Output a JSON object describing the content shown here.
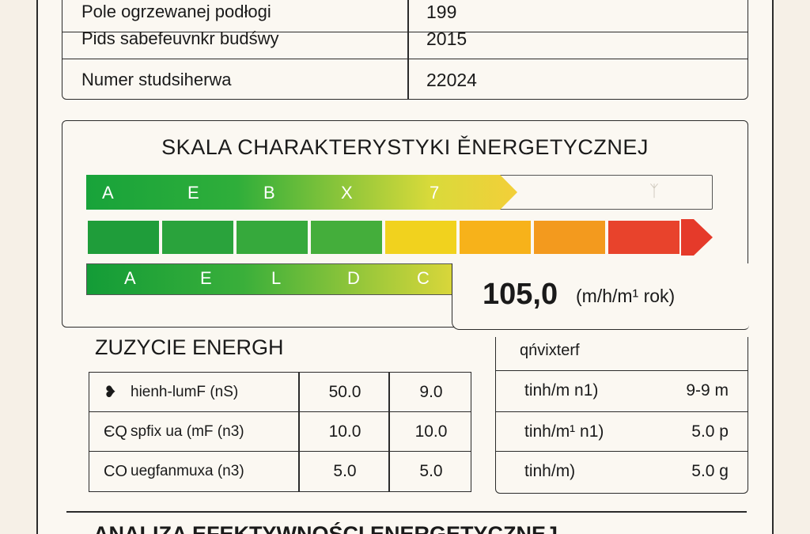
{
  "info_table": {
    "rows": [
      {
        "label": "Pole ogrzewanej podłogi",
        "value": "199"
      },
      {
        "label": "Pids sabefeuvnkr budśwy",
        "value": "2015"
      },
      {
        "label": "Numer studsiherwa",
        "value": "22024"
      }
    ]
  },
  "scale": {
    "title": "SKALA CHARAKTERYSTYKI ĚNERGETYCZNEJ",
    "bar1_letters": [
      "A",
      "E",
      "B",
      "X",
      "7"
    ],
    "bar1_ghost": "ᛉ",
    "bar2_colors": [
      "#1f9d3a",
      "#2aa33c",
      "#36a93c",
      "#44ae3b",
      "#f1d21e",
      "#f7b21a",
      "#f39a1e",
      "#e8432c",
      "#e53a2a"
    ],
    "bar3_letters": [
      "A",
      "E",
      "L",
      "D",
      "C"
    ],
    "value": "105,0",
    "unit": "(m/h/m¹ rok)"
  },
  "consumption": {
    "title": "ZUZYCIE ENERGH",
    "rows": [
      {
        "icon": "❥",
        "label": "hienh-lumF (nS)",
        "v1": "50.0",
        "v2": "9.0"
      },
      {
        "icon": "ЄQ",
        "label": "spfix ua (mF (n3)",
        "v1": "10.0",
        "v2": "10.0"
      },
      {
        "icon": "CO",
        "label": "uegfanmuxa (n3)",
        "v1": "5.0",
        "v2": "5.0"
      }
    ]
  },
  "side_panel": {
    "title": "qńvixterf",
    "rows": [
      {
        "label": "tinh/m n1)",
        "value": "9-9 m"
      },
      {
        "label": "tinh/m¹ n1)",
        "value": "5.0 p"
      },
      {
        "label": "tinh/m)",
        "value": "5.0 g"
      }
    ]
  },
  "bottom": {
    "title": "ANALIZA EFEKTYWNOŚCI ENERGETYCZNEJ"
  }
}
